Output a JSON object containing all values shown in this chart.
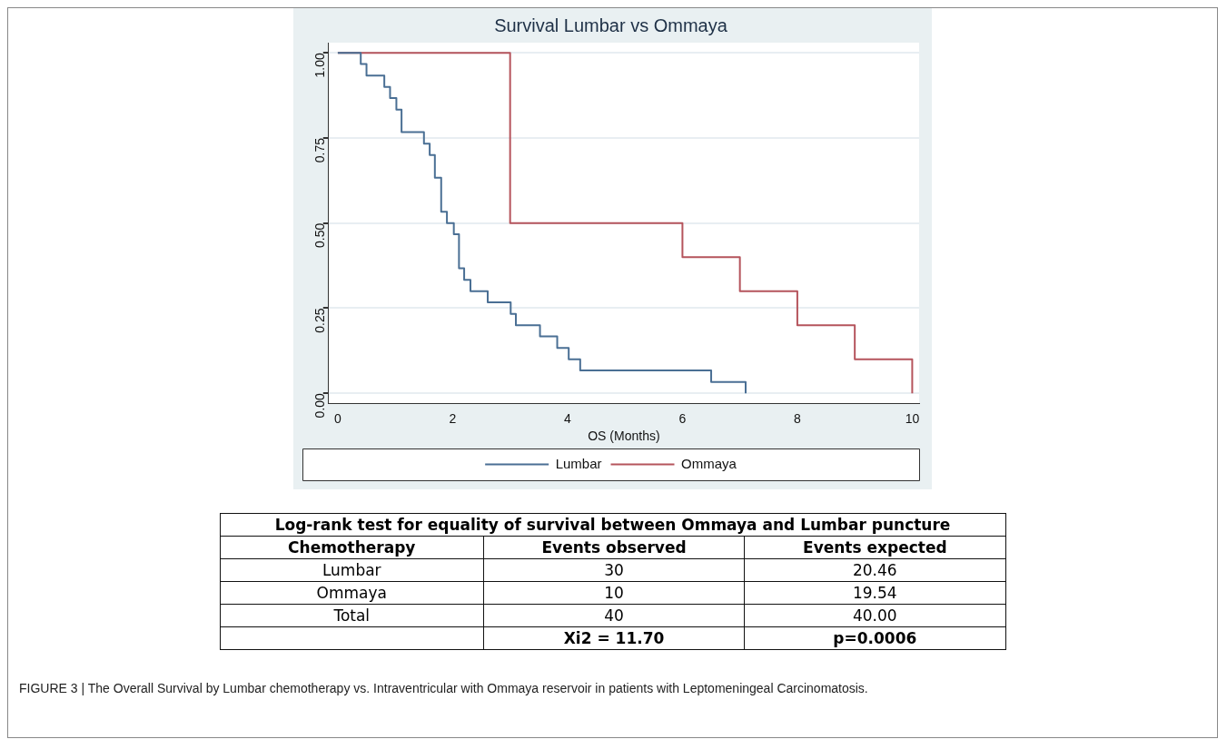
{
  "chart_data": [
    {
      "type": "step",
      "title": "Survival Lumbar vs Ommaya",
      "xlabel": "OS (Months)",
      "xlim": [
        -0.16,
        10.12
      ],
      "xticks": [
        0,
        2,
        4,
        6,
        8,
        10
      ],
      "ylim": [
        -0.03,
        1.03
      ],
      "yticks": [
        {
          "value": 0,
          "label": "0.00"
        },
        {
          "value": 0.25,
          "label": "0.25"
        },
        {
          "value": 0.5,
          "label": "0.50"
        },
        {
          "value": 0.75,
          "label": "0.75"
        },
        {
          "value": 1,
          "label": "1.00"
        }
      ],
      "grid": "y",
      "legend": "bottom",
      "series": [
        {
          "name": "Lumbar",
          "color": "#4a6f94",
          "x": [
            0,
            0.4,
            0.5,
            0.81,
            0.91,
            1.02,
            1.11,
            1.5,
            1.6,
            1.69,
            1.8,
            1.9,
            2.02,
            2.11,
            2.2,
            2.31,
            2.61,
            3.01,
            3.1,
            3.52,
            3.82,
            4.02,
            4.22,
            6.5,
            7.1
          ],
          "values": [
            1,
            0.967,
            0.933,
            0.9,
            0.867,
            0.833,
            0.767,
            0.733,
            0.7,
            0.633,
            0.533,
            0.5,
            0.467,
            0.367,
            0.333,
            0.3,
            0.267,
            0.233,
            0.2,
            0.167,
            0.133,
            0.1,
            0.067,
            0.033,
            0
          ]
        },
        {
          "name": "Ommaya",
          "color": "#b5545c",
          "x": [
            0,
            3,
            6,
            7,
            8,
            9,
            10
          ],
          "values": [
            1,
            0.5,
            0.4,
            0.3,
            0.2,
            0.1,
            0
          ]
        }
      ],
      "annotations": [
        "FIGURE 3 | The Overall Survival by Lumbar chemotherapy vs. Intraventricular with Ommaya reservoir in patients with Leptomeningeal Carcinomatosis."
      ]
    },
    {
      "type": "other",
      "title": "Log-rank test for equality of survival between Ommaya and Lumbar puncture",
      "annotations": [
        "Chemotherapy",
        "Events observed",
        "Events expected",
        "Lumbar",
        "30",
        "20.46",
        "Ommaya",
        "10",
        "19.54",
        "Total",
        "40",
        "40.00",
        "Xi2 = 11.70",
        "p=0.0006"
      ]
    }
  ]
}
